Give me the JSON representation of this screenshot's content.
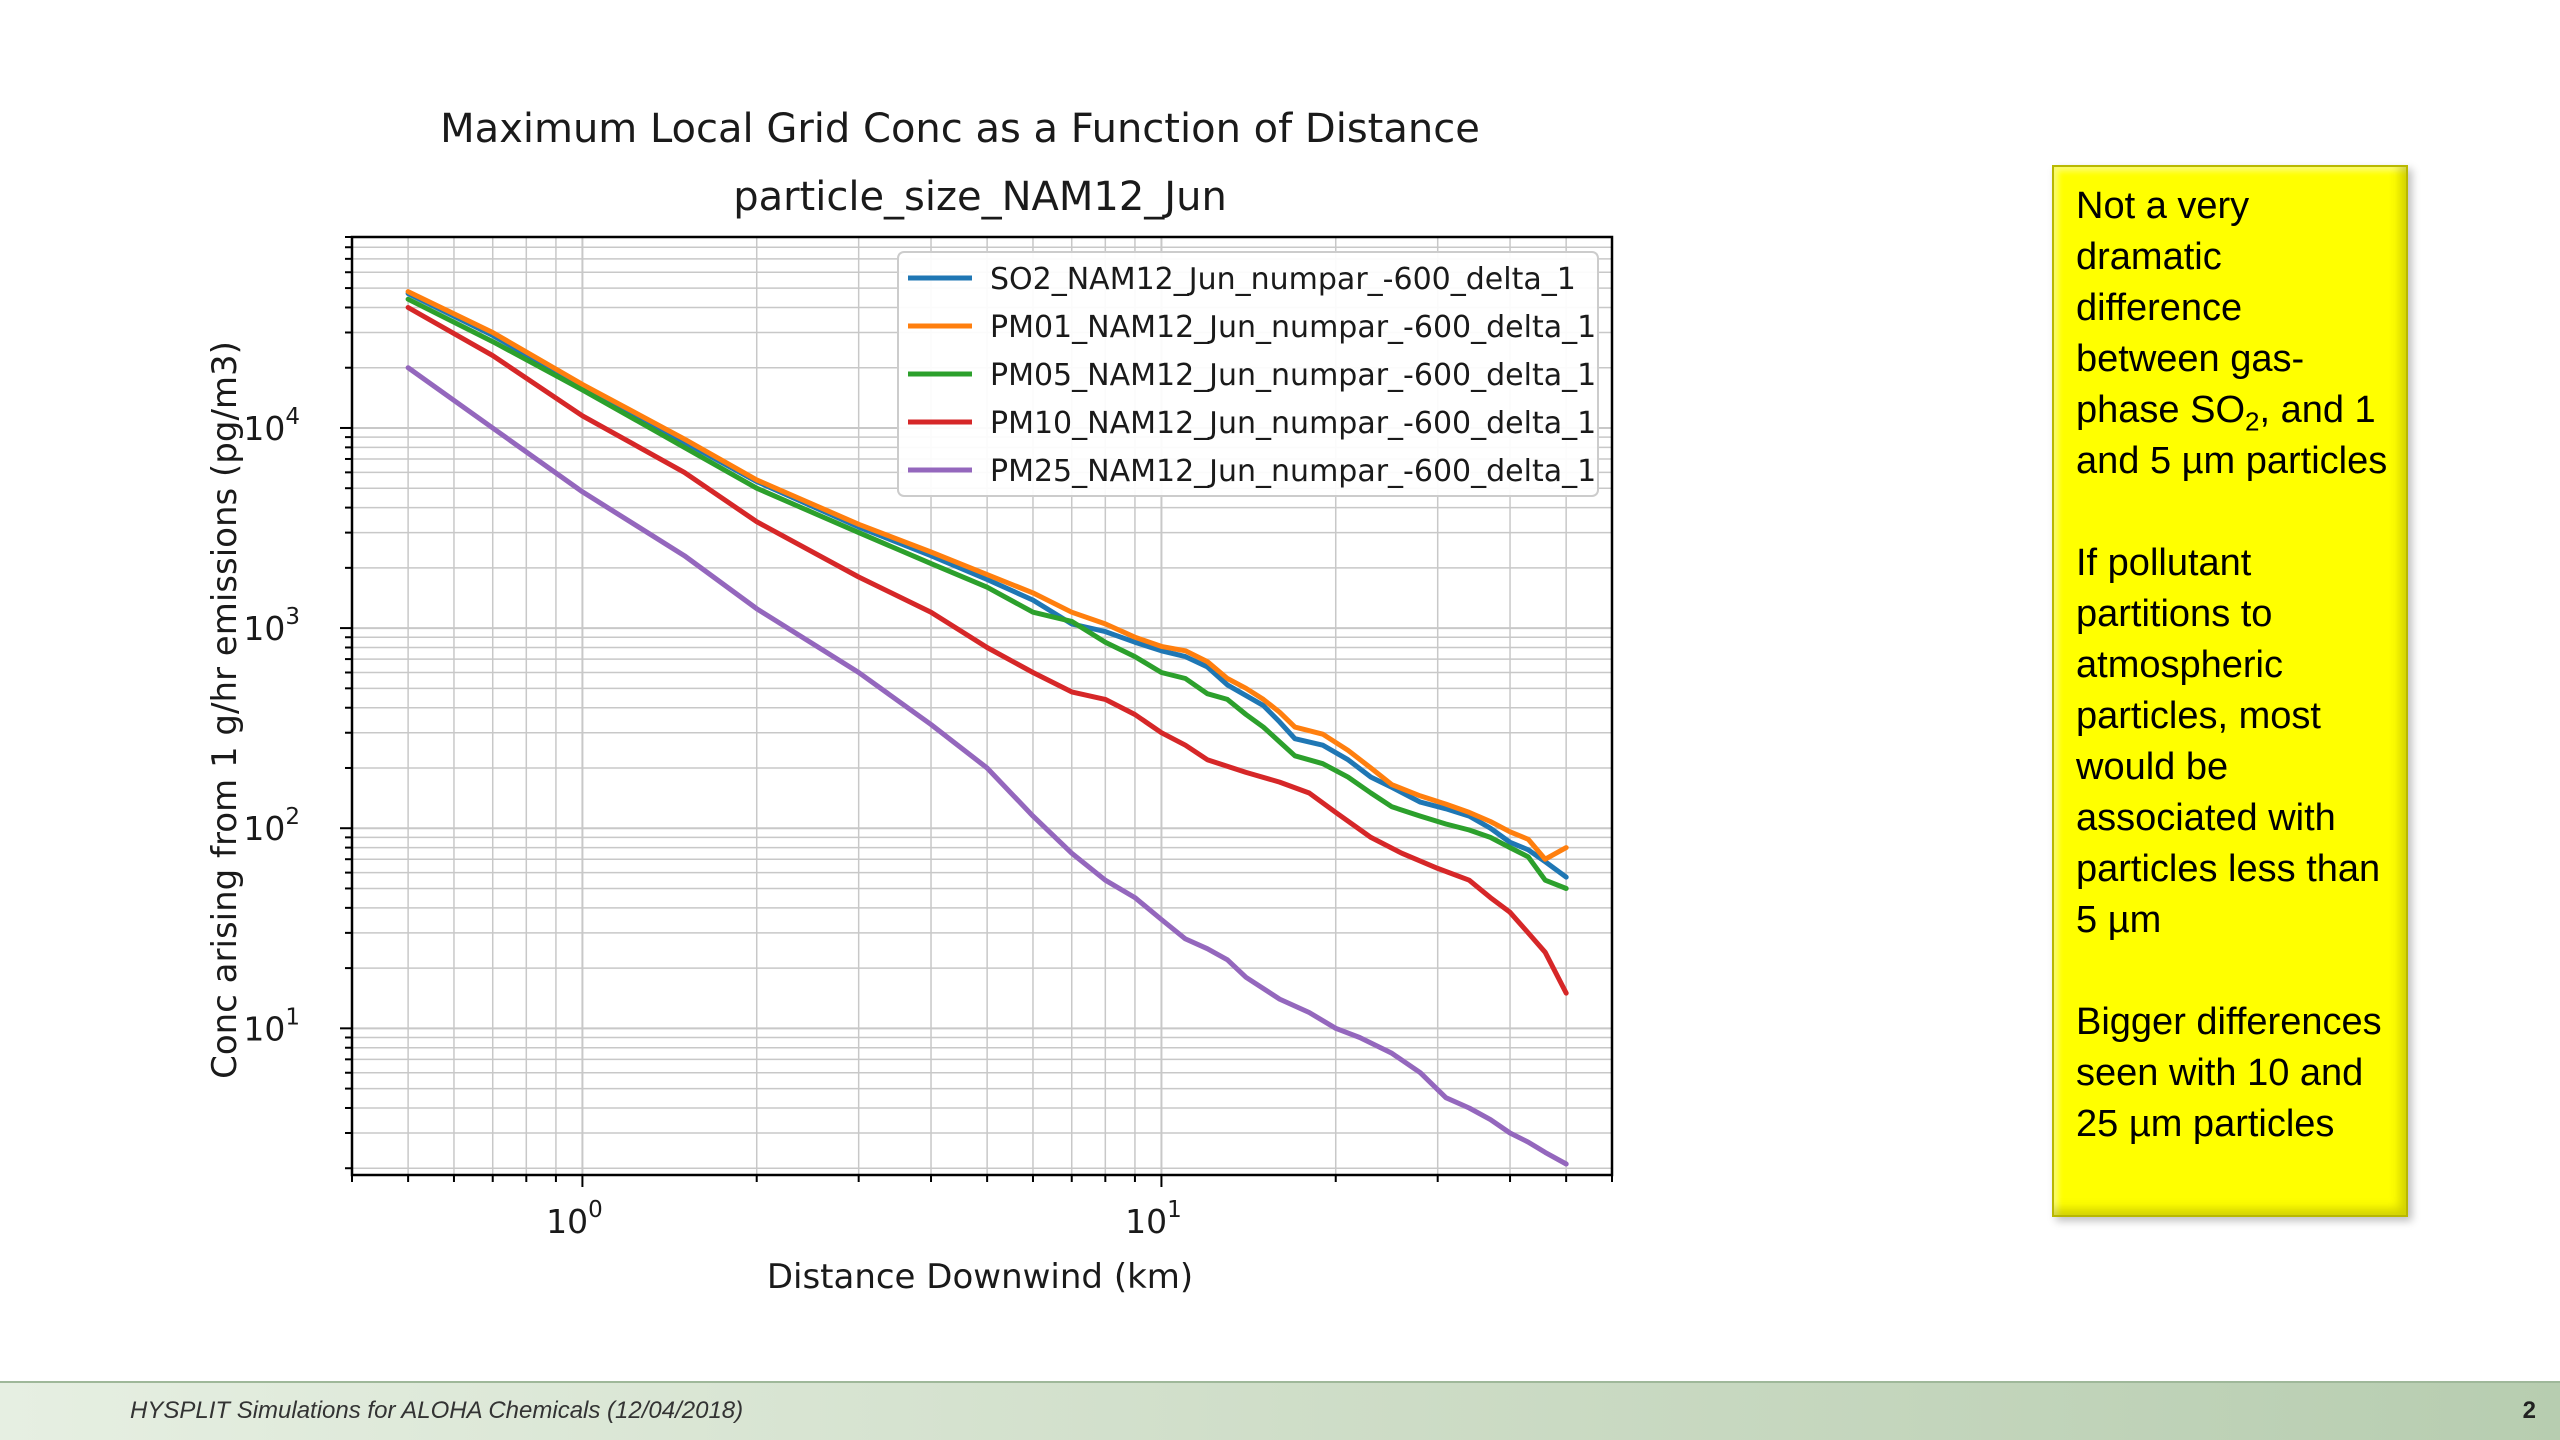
{
  "chart_data": {
    "type": "line",
    "title": "Maximum Local Grid Conc as a Function of Distance",
    "subtitle": "particle_size_NAM12_Jun",
    "xlabel": "Distance Downwind (km)",
    "ylabel": "Conc arising from 1 g/hr emissions (pg/m3)",
    "xscale": "log",
    "yscale": "log",
    "xlim": [
      0.4,
      60
    ],
    "ylim": [
      1.85,
      90000
    ],
    "x_ticks": [
      {
        "base": "10",
        "exp": "0",
        "value": 1
      },
      {
        "base": "10",
        "exp": "1",
        "value": 10
      }
    ],
    "y_ticks": [
      {
        "base": "10",
        "exp": "1",
        "value": 10
      },
      {
        "base": "10",
        "exp": "2",
        "value": 100
      },
      {
        "base": "10",
        "exp": "3",
        "value": 1000
      },
      {
        "base": "10",
        "exp": "4",
        "value": 10000
      }
    ],
    "grid": true,
    "legend_position": "upper-right",
    "series": [
      {
        "name": "SO2_NAM12_Jun_numpar_-600_delta_1",
        "color": "#1f77b4",
        "points": [
          [
            0.5,
            47000
          ],
          [
            0.7,
            29000
          ],
          [
            1.0,
            16000
          ],
          [
            1.5,
            8500
          ],
          [
            2.0,
            5400
          ],
          [
            3.0,
            3200
          ],
          [
            4.0,
            2300
          ],
          [
            5.0,
            1750
          ],
          [
            6.0,
            1380
          ],
          [
            7.0,
            1050
          ],
          [
            8.0,
            960
          ],
          [
            9.0,
            850
          ],
          [
            10.0,
            770
          ],
          [
            11.0,
            720
          ],
          [
            12.0,
            640
          ],
          [
            13.0,
            520
          ],
          [
            14.0,
            460
          ],
          [
            15.0,
            410
          ],
          [
            16.0,
            340
          ],
          [
            17.0,
            280
          ],
          [
            19.0,
            260
          ],
          [
            21.0,
            220
          ],
          [
            23.0,
            180
          ],
          [
            25.0,
            160
          ],
          [
            28.0,
            135
          ],
          [
            31.0,
            125
          ],
          [
            34.0,
            115
          ],
          [
            37.0,
            100
          ],
          [
            40.0,
            85
          ],
          [
            43.0,
            78
          ],
          [
            46.0,
            68
          ],
          [
            50.0,
            57
          ]
        ]
      },
      {
        "name": "PM01_NAM12_Jun_numpar_-600_delta_1",
        "color": "#ff7f0e",
        "points": [
          [
            0.5,
            48000
          ],
          [
            0.7,
            30000
          ],
          [
            1.0,
            16500
          ],
          [
            1.5,
            8800
          ],
          [
            2.0,
            5500
          ],
          [
            3.0,
            3300
          ],
          [
            4.0,
            2400
          ],
          [
            5.0,
            1850
          ],
          [
            6.0,
            1500
          ],
          [
            7.0,
            1200
          ],
          [
            8.0,
            1050
          ],
          [
            9.0,
            900
          ],
          [
            10.0,
            810
          ],
          [
            11.0,
            770
          ],
          [
            12.0,
            680
          ],
          [
            13.0,
            560
          ],
          [
            14.0,
            500
          ],
          [
            15.0,
            440
          ],
          [
            16.0,
            380
          ],
          [
            17.0,
            320
          ],
          [
            19.0,
            295
          ],
          [
            21.0,
            245
          ],
          [
            23.0,
            200
          ],
          [
            25.0,
            165
          ],
          [
            28.0,
            145
          ],
          [
            31.0,
            132
          ],
          [
            34.0,
            120
          ],
          [
            37.0,
            108
          ],
          [
            40.0,
            96
          ],
          [
            43.0,
            88
          ],
          [
            46.0,
            70
          ],
          [
            50.0,
            80
          ]
        ]
      },
      {
        "name": "PM05_NAM12_Jun_numpar_-600_delta_1",
        "color": "#2ca02c",
        "points": [
          [
            0.5,
            44000
          ],
          [
            0.7,
            27000
          ],
          [
            1.0,
            15500
          ],
          [
            1.5,
            8000
          ],
          [
            2.0,
            5000
          ],
          [
            3.0,
            3000
          ],
          [
            4.0,
            2100
          ],
          [
            5.0,
            1600
          ],
          [
            6.0,
            1200
          ],
          [
            7.0,
            1080
          ],
          [
            8.0,
            850
          ],
          [
            9.0,
            720
          ],
          [
            10.0,
            600
          ],
          [
            11.0,
            560
          ],
          [
            12.0,
            470
          ],
          [
            13.0,
            440
          ],
          [
            14.0,
            370
          ],
          [
            15.0,
            320
          ],
          [
            16.0,
            270
          ],
          [
            17.0,
            230
          ],
          [
            19.0,
            210
          ],
          [
            21.0,
            180
          ],
          [
            23.0,
            150
          ],
          [
            25.0,
            128
          ],
          [
            28.0,
            115
          ],
          [
            31.0,
            105
          ],
          [
            34.0,
            98
          ],
          [
            37.0,
            90
          ],
          [
            40.0,
            80
          ],
          [
            43.0,
            72
          ],
          [
            46.0,
            55
          ],
          [
            50.0,
            50
          ]
        ]
      },
      {
        "name": "PM10_NAM12_Jun_numpar_-600_delta_1",
        "color": "#d62728",
        "points": [
          [
            0.5,
            40000
          ],
          [
            0.7,
            23000
          ],
          [
            1.0,
            11500
          ],
          [
            1.5,
            6000
          ],
          [
            2.0,
            3400
          ],
          [
            3.0,
            1800
          ],
          [
            4.0,
            1200
          ],
          [
            5.0,
            800
          ],
          [
            6.0,
            600
          ],
          [
            7.0,
            480
          ],
          [
            8.0,
            440
          ],
          [
            9.0,
            370
          ],
          [
            10.0,
            300
          ],
          [
            11.0,
            260
          ],
          [
            12.0,
            220
          ],
          [
            14.0,
            190
          ],
          [
            16.0,
            170
          ],
          [
            18.0,
            150
          ],
          [
            20.0,
            120
          ],
          [
            23.0,
            90
          ],
          [
            26.0,
            75
          ],
          [
            30.0,
            63
          ],
          [
            34.0,
            55
          ],
          [
            37.0,
            45
          ],
          [
            40.0,
            38
          ],
          [
            43.0,
            30
          ],
          [
            46.0,
            24
          ],
          [
            50.0,
            15
          ]
        ]
      },
      {
        "name": "PM25_NAM12_Jun_numpar_-600_delta_1",
        "color": "#9467bd",
        "points": [
          [
            0.5,
            20000
          ],
          [
            0.7,
            10000
          ],
          [
            1.0,
            4800
          ],
          [
            1.5,
            2300
          ],
          [
            2.0,
            1250
          ],
          [
            3.0,
            600
          ],
          [
            4.0,
            330
          ],
          [
            5.0,
            200
          ],
          [
            6.0,
            115
          ],
          [
            7.0,
            75
          ],
          [
            8.0,
            55
          ],
          [
            9.0,
            45
          ],
          [
            10.0,
            35
          ],
          [
            11.0,
            28
          ],
          [
            12.0,
            25
          ],
          [
            13.0,
            22
          ],
          [
            14.0,
            18
          ],
          [
            16.0,
            14
          ],
          [
            18.0,
            12
          ],
          [
            20.0,
            10
          ],
          [
            22.0,
            9
          ],
          [
            25.0,
            7.5
          ],
          [
            28.0,
            6
          ],
          [
            31.0,
            4.5
          ],
          [
            34.0,
            4
          ],
          [
            37.0,
            3.5
          ],
          [
            40.0,
            3
          ],
          [
            43.0,
            2.7
          ],
          [
            46.0,
            2.4
          ],
          [
            50.0,
            2.1
          ]
        ]
      }
    ]
  },
  "note_box": {
    "paragraph1_pre": "Not a very dramatic difference between gas-phase SO",
    "paragraph1_sub": "2",
    "paragraph1_post": ", and 1 and 5 µm particles",
    "paragraph2": "If pollutant partitions to atmospheric particles, most would be associated with particles less than 5 µm",
    "paragraph3": "Bigger differences seen with 10 and 25 µm particles"
  },
  "footer": {
    "text": "HYSPLIT Simulations for ALOHA Chemicals (12/04/2018)",
    "page_number": "2"
  }
}
